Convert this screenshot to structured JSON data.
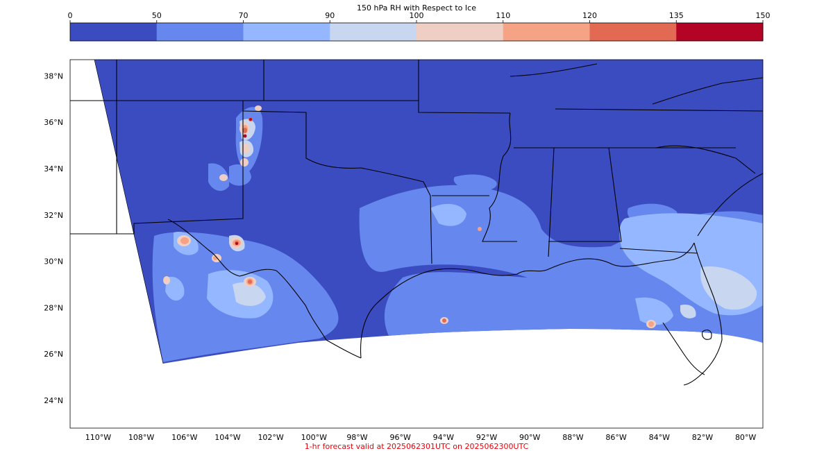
{
  "colorbar": {
    "title": "150 hPa RH with Respect to Ice",
    "levels": [
      0,
      50,
      70,
      90,
      100,
      110,
      120,
      135,
      150
    ],
    "tick_labels": [
      "0",
      "50",
      "70",
      "90",
      "100",
      "110",
      "120",
      "135",
      "150"
    ],
    "colors": [
      "#3b4cc0",
      "#6688ee",
      "#95b7ff",
      "#c8d6ef",
      "#efcfc3",
      "#f6a385",
      "#e26952",
      "#b40426"
    ]
  },
  "map": {
    "lon_range": [
      -111.3,
      -79.2
    ],
    "lat_range": [
      22.8,
      38.7
    ],
    "lat_ticks": [
      {
        "value": 38,
        "label": "38°N"
      },
      {
        "value": 36,
        "label": "36°N"
      },
      {
        "value": 34,
        "label": "34°N"
      },
      {
        "value": 32,
        "label": "32°N"
      },
      {
        "value": 30,
        "label": "30°N"
      },
      {
        "value": 28,
        "label": "28°N"
      },
      {
        "value": 26,
        "label": "26°N"
      },
      {
        "value": 24,
        "label": "24°N"
      }
    ],
    "lon_ticks": [
      {
        "value": -110,
        "label": "110°W"
      },
      {
        "value": -108,
        "label": "108°W"
      },
      {
        "value": -106,
        "label": "106°W"
      },
      {
        "value": -104,
        "label": "104°W"
      },
      {
        "value": -102,
        "label": "102°W"
      },
      {
        "value": -100,
        "label": "100°W"
      },
      {
        "value": -98,
        "label": "98°W"
      },
      {
        "value": -96,
        "label": "96°W"
      },
      {
        "value": -94,
        "label": "94°W"
      },
      {
        "value": -92,
        "label": "92°W"
      },
      {
        "value": -90,
        "label": "90°W"
      },
      {
        "value": -88,
        "label": "88°W"
      },
      {
        "value": -86,
        "label": "86°W"
      },
      {
        "value": -84,
        "label": "84°W"
      },
      {
        "value": -82,
        "label": "82°W"
      },
      {
        "value": -80,
        "label": "80°W"
      }
    ]
  },
  "footer": {
    "caption": "1-hr forecast valid at 2025062301UTC on 2025062300UTC",
    "caption_color": "#e8000b"
  }
}
